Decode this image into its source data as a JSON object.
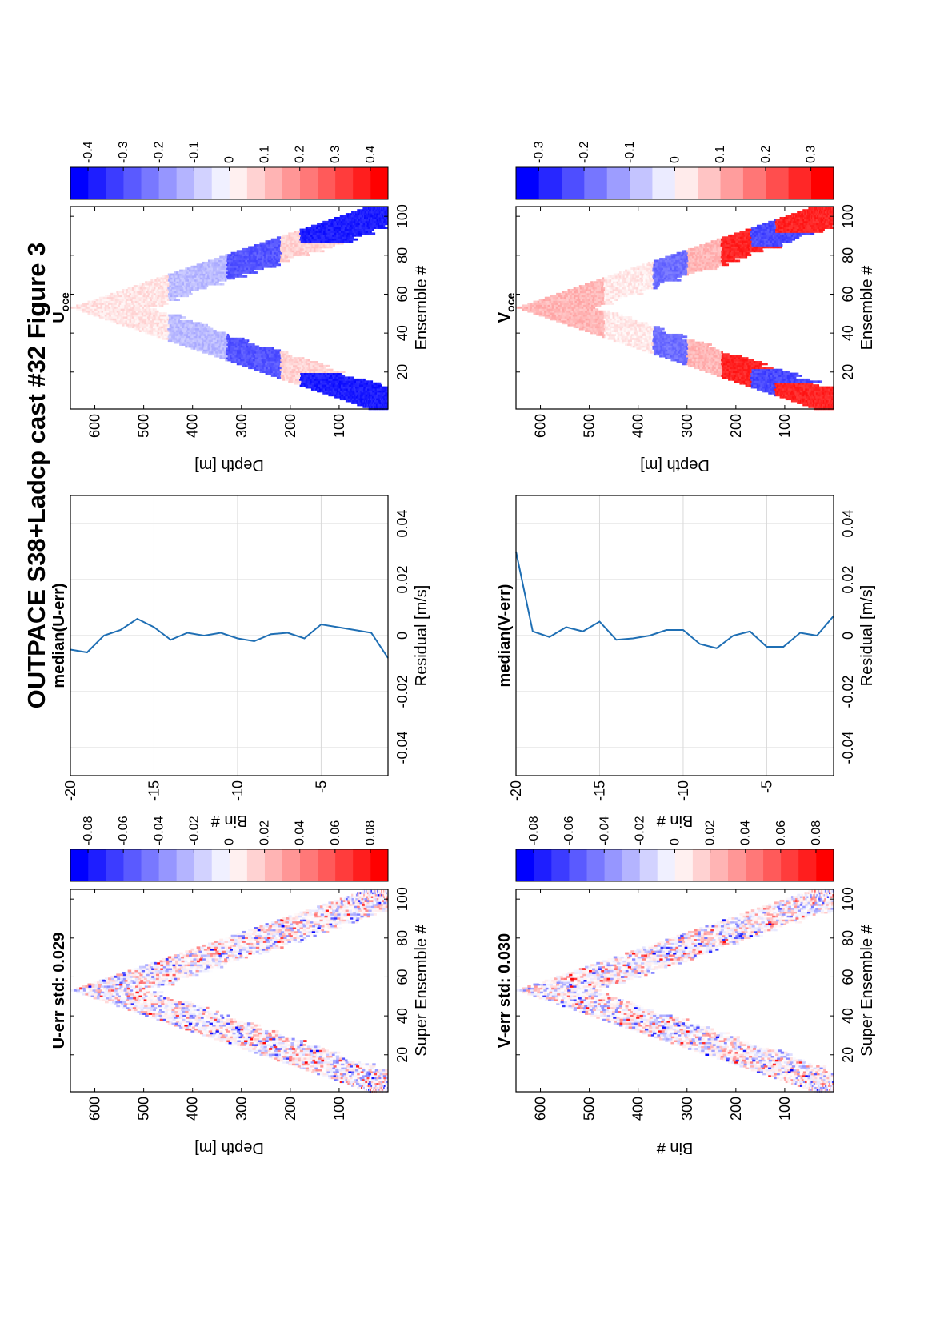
{
  "figure": {
    "title": "OUTPACE S38+Ladcp cast #32  Figure 3"
  },
  "chart_data": [
    {
      "id": "u_err",
      "type": "heatmap",
      "title": "U-err std: 0.029",
      "xlabel": "Super Ensemble #",
      "ylabel": "Depth [m]",
      "xlim": [
        1,
        105
      ],
      "ylim": [
        650,
        0
      ],
      "xticks": [
        20,
        40,
        60,
        80,
        100
      ],
      "yticks": [
        100,
        200,
        300,
        400,
        500,
        600
      ],
      "colorbar": {
        "ticks": [
          "0.08",
          "0.06",
          "0.04",
          "0.02",
          "0",
          "-0.02",
          "-0.04",
          "-0.06",
          "-0.08"
        ],
        "range": [
          -0.09,
          0.09
        ],
        "scale": "red-white-blue"
      }
    },
    {
      "id": "median_u",
      "type": "line",
      "title": "median(U-err)",
      "xlabel": "Residual [m/s]",
      "ylabel": "Bin #",
      "xlim": [
        -0.05,
        0.05
      ],
      "ylim": [
        -1,
        -20
      ],
      "xticks": [
        "-0.04",
        "-0.02",
        "0",
        "0.02",
        "0.04"
      ],
      "yticks": [
        "-5",
        "-10",
        "-15",
        "-20"
      ],
      "grid": true,
      "color": "#1f6fb4",
      "series": [
        {
          "bin": [
            -1,
            -2,
            -3,
            -4,
            -5,
            -6,
            -7,
            -8,
            -9,
            -10,
            -11,
            -12,
            -13,
            -14,
            -15,
            -16,
            -17,
            -18,
            -19,
            -20
          ],
          "values": [
            -0.008,
            0.001,
            0.002,
            0.003,
            0.004,
            -0.001,
            0.001,
            0.0005,
            -0.002,
            -0.001,
            0.001,
            0.0,
            0.001,
            -0.0015,
            0.003,
            0.006,
            0.002,
            0.0,
            -0.006,
            -0.005
          ]
        }
      ]
    },
    {
      "id": "u_oce",
      "type": "heatmap",
      "title": "U",
      "title_sub": "oce",
      "xlabel": "Ensemble #",
      "ylabel": "Depth [m]",
      "xlim": [
        1,
        105
      ],
      "ylim": [
        650,
        0
      ],
      "xticks": [
        20,
        40,
        60,
        80,
        100
      ],
      "yticks": [
        100,
        200,
        300,
        400,
        500,
        600
      ],
      "colorbar": {
        "ticks": [
          "0.4",
          "0.3",
          "0.2",
          "0.1",
          "0",
          "-0.1",
          "-0.2",
          "-0.3",
          "-0.4"
        ],
        "range": [
          -0.45,
          0.45
        ],
        "scale": "red-white-blue"
      }
    },
    {
      "id": "v_err",
      "type": "heatmap",
      "title": "V-err std: 0.030",
      "xlabel": "Super Ensemble #",
      "ylabel": "Bin #",
      "xlim": [
        1,
        105
      ],
      "ylim": [
        650,
        0
      ],
      "xticks": [
        20,
        40,
        60,
        80,
        100
      ],
      "yticks": [
        100,
        200,
        300,
        400,
        500,
        600
      ],
      "colorbar": {
        "ticks": [
          "0.08",
          "0.06",
          "0.04",
          "0.02",
          "0",
          "-0.02",
          "-0.04",
          "-0.06",
          "-0.08"
        ],
        "range": [
          -0.09,
          0.09
        ],
        "scale": "red-white-blue"
      }
    },
    {
      "id": "median_v",
      "type": "line",
      "title": "median(V-err)",
      "xlabel": "Residual [m/s]",
      "ylabel": "Bin #",
      "xlim": [
        -0.05,
        0.05
      ],
      "ylim": [
        -1,
        -20
      ],
      "xticks": [
        "-0.04",
        "-0.02",
        "0",
        "0.02",
        "0.04"
      ],
      "yticks": [
        "-5",
        "-10",
        "-15",
        "-20"
      ],
      "grid": true,
      "color": "#1f6fb4",
      "series": [
        {
          "bin": [
            -1,
            -2,
            -3,
            -4,
            -5,
            -6,
            -7,
            -8,
            -9,
            -10,
            -11,
            -12,
            -13,
            -14,
            -15,
            -16,
            -17,
            -18,
            -19,
            -20
          ],
          "values": [
            0.007,
            0.0,
            0.001,
            -0.004,
            -0.004,
            0.0015,
            0.0,
            -0.0045,
            -0.003,
            0.002,
            0.002,
            0.0,
            -0.001,
            -0.0015,
            0.005,
            0.0015,
            0.003,
            -0.0005,
            0.0015,
            0.03
          ]
        }
      ]
    },
    {
      "id": "v_oce",
      "type": "heatmap",
      "title": "V",
      "title_sub": "oce",
      "xlabel": "Ensemble #",
      "ylabel": "Depth [m]",
      "xlim": [
        1,
        105
      ],
      "ylim": [
        650,
        0
      ],
      "xticks": [
        20,
        40,
        60,
        80,
        100
      ],
      "yticks": [
        100,
        200,
        300,
        400,
        500,
        600
      ],
      "colorbar": {
        "ticks": [
          "0.3",
          "0.2",
          "0.1",
          "0",
          "-0.1",
          "-0.2",
          "-0.3"
        ],
        "range": [
          -0.35,
          0.35
        ],
        "scale": "red-white-blue"
      }
    }
  ]
}
